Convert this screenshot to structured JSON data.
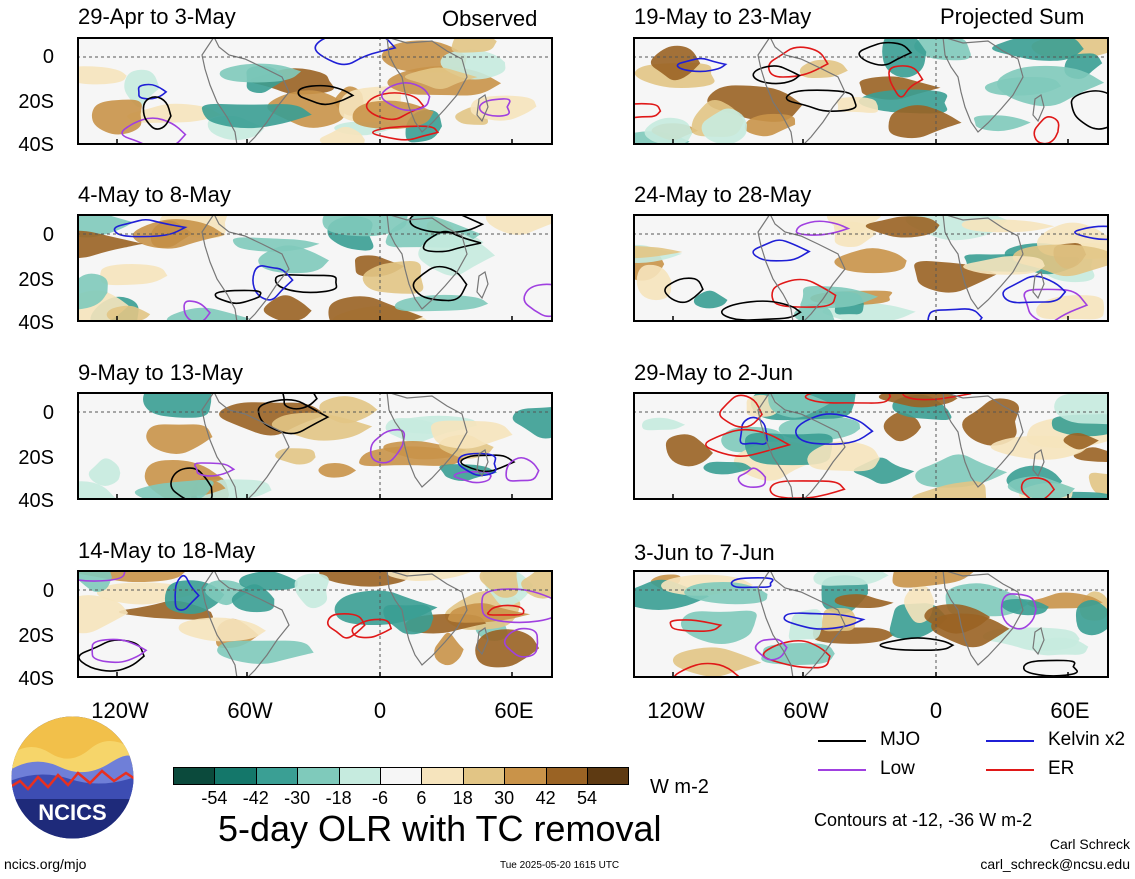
{
  "header": {
    "left_tag": "Observed",
    "right_tag": "Projected Sum"
  },
  "panels_left": [
    {
      "title": "29-Apr to 3-May"
    },
    {
      "title": "4-May to 8-May"
    },
    {
      "title": "9-May to 13-May"
    },
    {
      "title": "14-May to 18-May"
    }
  ],
  "panels_right": [
    {
      "title": "19-May to 23-May"
    },
    {
      "title": "24-May to 28-May"
    },
    {
      "title": "29-May to 2-Jun"
    },
    {
      "title": "3-Jun to 7-Jun"
    }
  ],
  "y_axis": {
    "labels": [
      "0",
      "20S",
      "40S"
    ]
  },
  "x_axis": {
    "labels": [
      "120W",
      "60W",
      "0",
      "60E"
    ]
  },
  "colorbar": {
    "ticks": [
      "-54",
      "-42",
      "-30",
      "-18",
      "-6",
      "6",
      "18",
      "30",
      "42",
      "54"
    ],
    "colors": [
      "#0b4a3c",
      "#14776a",
      "#3a9f94",
      "#7fcabb",
      "#c6ebdf",
      "#f6f6f6",
      "#f6e4bd",
      "#e2c585",
      "#c99349",
      "#9a6324",
      "#5e3a12"
    ],
    "units": "W m-2"
  },
  "legend": {
    "mjo": "MJO",
    "kelvin": "Kelvin x2",
    "low": "Low",
    "er": "ER",
    "colors": {
      "mjo": "#000000",
      "kelvin": "#1f1fd6",
      "low": "#a040e0",
      "er": "#e01818"
    }
  },
  "main_title": "5-day OLR with TC removal",
  "contours_note": "Contours at -12, -36 W m-2",
  "author": "Carl Schreck",
  "email": "carl_schreck@ncsu.edu",
  "website": "ncics.org/mjo",
  "timestamp": "Tue 2025-05-20 1615 UTC",
  "logo_text": "NCICS"
}
